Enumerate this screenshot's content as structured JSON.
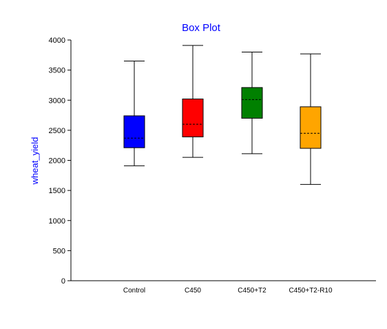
{
  "chart_data": {
    "type": "box",
    "title": "Box Plot",
    "xlabel": "",
    "ylabel": "wheat_yield",
    "ylim": [
      0,
      4000
    ],
    "yticks": [
      "0",
      "500",
      "1000",
      "1500",
      "2000",
      "2500",
      "3000",
      "3500",
      "4000"
    ],
    "grid": false,
    "legend": "none",
    "categories": [
      "Control",
      "C450",
      "C450+T2",
      "C450+T2-R10"
    ],
    "boxes": [
      {
        "category": "Control",
        "min": 1910,
        "q1": 2210,
        "median": 2370,
        "q3": 2740,
        "max": 3650,
        "color": "#0000ff"
      },
      {
        "category": "C450",
        "min": 2050,
        "q1": 2390,
        "median": 2600,
        "q3": 3020,
        "max": 3910,
        "color": "#ff0000"
      },
      {
        "category": "C450+T2",
        "min": 2110,
        "q1": 2700,
        "median": 3010,
        "q3": 3210,
        "max": 3800,
        "color": "#008000"
      },
      {
        "category": "C450+T2-R10",
        "min": 1600,
        "q1": 2200,
        "median": 2450,
        "q3": 2890,
        "max": 3770,
        "color": "#ffa500"
      }
    ]
  },
  "colors": {
    "title": "#0000ff",
    "ylabel": "#0000ff",
    "axis": "#000000",
    "median_line": "#000000"
  }
}
